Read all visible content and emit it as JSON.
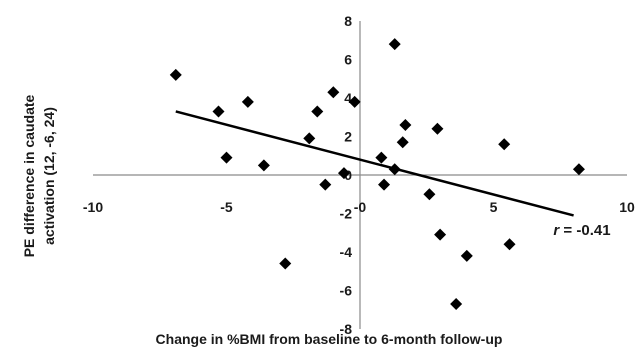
{
  "chart_data": {
    "type": "scatter",
    "xlabel": "Change in %BMI from baseline to 6-month follow-up",
    "ylabel_line1": "PE difference in caudate",
    "ylabel_line2": "activation (12, -6, 24)",
    "xlim": [
      -10,
      10
    ],
    "ylim": [
      -8,
      8
    ],
    "x_ticks": [
      -10,
      -5,
      0,
      5,
      10
    ],
    "y_ticks": [
      8,
      6,
      4,
      2,
      0,
      -2,
      -4,
      -6,
      -8
    ],
    "x_tick_labels": [
      "-10",
      "-5",
      "-0",
      "5",
      "10"
    ],
    "y_tick_labels": [
      "8",
      "6",
      "4",
      "2",
      "0",
      "-2",
      "-4",
      "-6",
      "-8"
    ],
    "marker": "diamond",
    "points": [
      {
        "x": -6.9,
        "y": 5.2
      },
      {
        "x": -5.3,
        "y": 3.3
      },
      {
        "x": -4.2,
        "y": 3.8
      },
      {
        "x": -5.0,
        "y": 0.9
      },
      {
        "x": -3.6,
        "y": 0.5
      },
      {
        "x": -2.8,
        "y": -4.6
      },
      {
        "x": -1.6,
        "y": 3.3
      },
      {
        "x": -1.0,
        "y": 4.3
      },
      {
        "x": -1.9,
        "y": 1.9
      },
      {
        "x": -0.6,
        "y": 0.1
      },
      {
        "x": -1.3,
        "y": -0.5
      },
      {
        "x": -0.2,
        "y": 3.8
      },
      {
        "x": 1.3,
        "y": 6.8
      },
      {
        "x": 1.7,
        "y": 2.6
      },
      {
        "x": 1.6,
        "y": 1.7
      },
      {
        "x": 0.8,
        "y": 0.9
      },
      {
        "x": 1.3,
        "y": 0.3
      },
      {
        "x": 0.9,
        "y": -0.5
      },
      {
        "x": 2.9,
        "y": 2.4
      },
      {
        "x": 2.6,
        "y": -1.0
      },
      {
        "x": 3.0,
        "y": -3.1
      },
      {
        "x": 4.0,
        "y": -4.2
      },
      {
        "x": 3.6,
        "y": -6.7
      },
      {
        "x": 5.4,
        "y": 1.6
      },
      {
        "x": 5.6,
        "y": -3.6
      },
      {
        "x": 8.2,
        "y": 0.3
      }
    ],
    "trendline": {
      "x1": -6.9,
      "y1": 3.3,
      "x2": 8.0,
      "y2": -2.1
    },
    "annotation": {
      "label": "r",
      "value": " = -0.41"
    },
    "color": "#000000",
    "grid": false
  }
}
